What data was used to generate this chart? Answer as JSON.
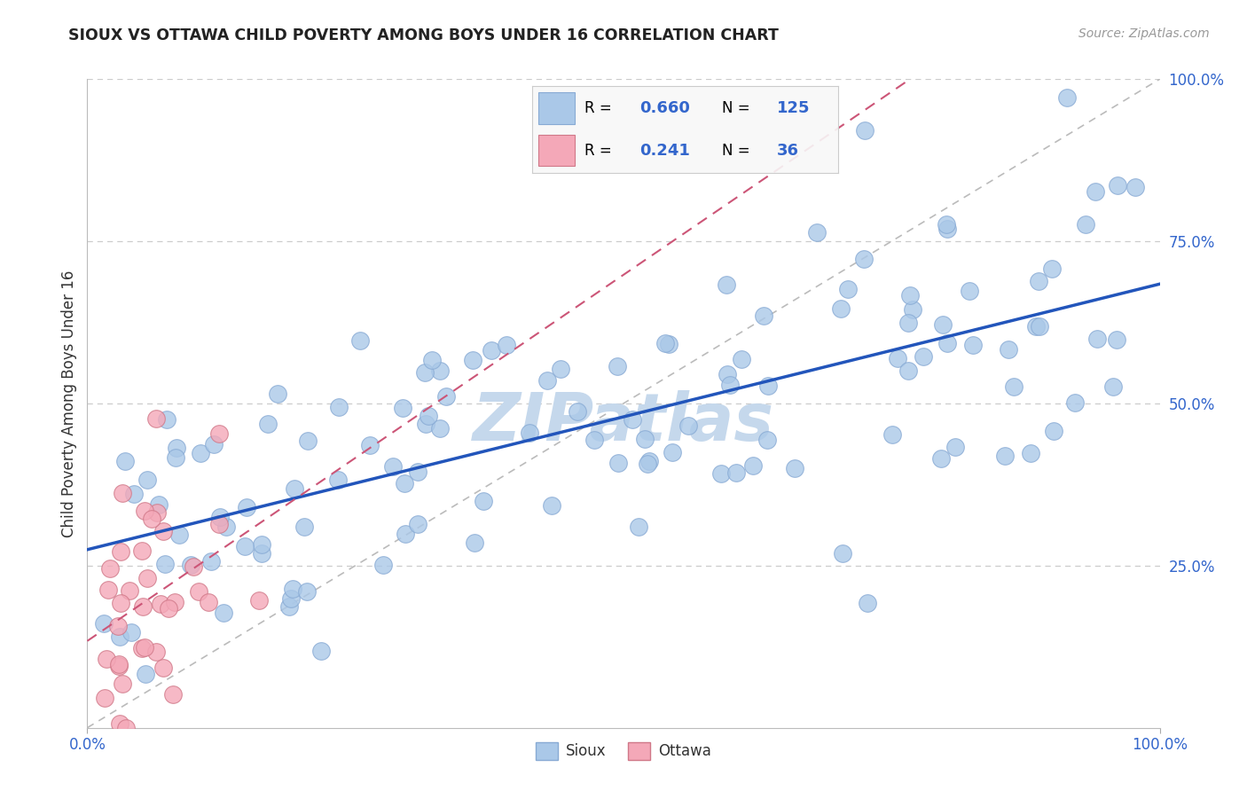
{
  "title": "SIOUX VS OTTAWA CHILD POVERTY AMONG BOYS UNDER 16 CORRELATION CHART",
  "source": "Source: ZipAtlas.com",
  "ylabel": "Child Poverty Among Boys Under 16",
  "sioux_R": 0.66,
  "sioux_N": 125,
  "ottawa_R": 0.241,
  "ottawa_N": 36,
  "sioux_color": "#aac8e8",
  "sioux_edge": "#88aad4",
  "ottawa_color": "#f4a8b8",
  "ottawa_edge": "#d07888",
  "regression_sioux_color": "#2255bb",
  "regression_ottawa_color": "#cc5577",
  "diagonal_color": "#bbbbbb",
  "background_color": "#ffffff",
  "watermark": "ZIPatlas",
  "watermark_color": "#c5d8ec",
  "xlim": [
    0,
    1
  ],
  "ylim": [
    0,
    1
  ],
  "ytick_labels": [
    "25.0%",
    "50.0%",
    "75.0%",
    "100.0%"
  ],
  "ytick_positions": [
    0.25,
    0.5,
    0.75,
    1.0
  ],
  "ytick_color": "#3366cc",
  "xtick_color": "#3366cc",
  "grid_color": "#cccccc",
  "legend_text_color": "#000000",
  "legend_value_color": "#3366cc"
}
